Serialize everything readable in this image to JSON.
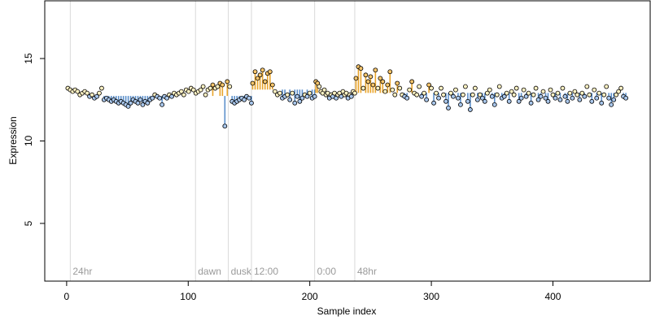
{
  "chart_data": {
    "type": "scatter",
    "title": "",
    "xlabel": "Sample index",
    "ylabel": "Expression",
    "xlim": [
      -18,
      480
    ],
    "ylim": [
      1.5,
      18.5
    ],
    "x_ticks": [
      0,
      100,
      200,
      300,
      400
    ],
    "y_ticks": [
      5,
      10,
      15
    ],
    "grid": false,
    "legend": "none",
    "colors": {
      "point_fill_default": "#fff3c4",
      "point_fill_low": "#a9c7ec",
      "point_fill_high": "#f7c56b",
      "point_edge": "#000000",
      "stem_low": "#5b8fcb",
      "stem_high": "#e9a42a",
      "event_line": "#d9d9d9",
      "event_text": "#9a9a9a"
    },
    "events": [
      {
        "label": "24hr",
        "x": 3
      },
      {
        "label": "dawn",
        "x": 106
      },
      {
        "label": "dusk",
        "x": 133
      },
      {
        "label": "12:00",
        "x": 152
      },
      {
        "label": "0:00",
        "x": 204
      },
      {
        "label": "48hr",
        "x": 237
      }
    ],
    "segments": [
      {
        "x_start": 1,
        "x_end": 152,
        "values": [
          13.2,
          13.1,
          13.0,
          13.1,
          13.0,
          12.8,
          12.9,
          13.0,
          12.9,
          12.7,
          12.8,
          12.6,
          12.7,
          12.9,
          13.2,
          12.5,
          12.6,
          12.5,
          12.4,
          12.5,
          12.4,
          12.3,
          12.4,
          12.3,
          12.2,
          12.1,
          12.3,
          12.5,
          12.4,
          12.3,
          12.5,
          12.2,
          12.4,
          12.3,
          12.5,
          12.6,
          12.8,
          12.7,
          12.6,
          12.2,
          12.7,
          12.6,
          12.8,
          12.7,
          12.9,
          12.8,
          12.9,
          13.0,
          12.8,
          13.1,
          13.0,
          13.2,
          13.1,
          12.9,
          13.0,
          13.1,
          13.3,
          12.8,
          13.1,
          13.2,
          13.4,
          13.2,
          13.3,
          13.5,
          13.4,
          10.9,
          13.6,
          13.3,
          12.4,
          12.3,
          12.4,
          12.5,
          12.6,
          12.5,
          12.7,
          12.6,
          12.3
        ]
      },
      {
        "x_start": 153,
        "x_end": 204,
        "values": [
          13.5,
          14.2,
          13.8,
          14.0,
          14.3,
          13.6,
          14.1,
          14.2,
          13.4,
          13.0,
          12.8,
          12.9,
          12.6,
          12.7,
          12.8,
          12.5,
          12.9,
          12.3,
          12.7,
          12.4,
          12.6,
          12.8,
          12.7,
          12.9,
          12.6,
          12.7
        ]
      },
      {
        "x_start": 205,
        "x_end": 237,
        "values": [
          13.6,
          13.5,
          13.3,
          13.0,
          12.9,
          13.1,
          12.8,
          12.9,
          12.6,
          12.8,
          12.7,
          12.9,
          12.6,
          12.8,
          12.9,
          12.7,
          13.0,
          12.8,
          12.9,
          12.6,
          12.8,
          12.7,
          13.0,
          12.9
        ]
      },
      {
        "x_start": 238,
        "x_end": 460,
        "values": [
          13.8,
          14.5,
          14.4,
          13.2,
          14.0,
          13.6,
          13.9,
          13.4,
          14.3,
          13.2,
          13.8,
          13.6,
          13.0,
          13.4,
          14.2,
          13.1,
          12.8,
          13.5,
          13.2,
          12.8,
          12.7,
          12.6,
          13.1,
          13.6,
          12.9,
          12.8,
          13.3,
          12.7,
          12.9,
          12.5,
          13.4,
          13.2,
          12.3,
          12.9,
          12.6,
          13.2,
          12.8,
          12.4,
          12.0,
          12.9,
          12.7,
          13.1,
          12.6,
          12.2,
          12.8,
          13.3,
          12.4,
          11.9,
          12.8,
          13.2,
          12.5,
          12.8,
          12.6,
          12.4,
          12.9,
          13.1,
          12.7,
          12.2,
          12.8,
          13.3,
          12.6,
          12.7,
          12.9,
          12.4,
          13.0,
          12.8,
          13.2,
          12.4,
          12.6,
          13.1,
          12.7,
          12.9,
          12.3,
          12.8,
          13.2,
          12.5,
          12.7,
          13.0,
          12.6,
          12.4,
          13.1,
          12.8,
          12.6,
          12.9,
          12.5,
          13.2,
          12.7,
          12.4,
          12.9,
          12.6,
          13.0,
          12.8,
          12.5,
          12.9,
          12.7,
          13.3,
          12.8,
          12.4,
          13.1,
          12.6,
          12.9,
          12.3,
          12.8,
          13.3,
          12.6,
          12.2,
          12.5,
          12.8,
          13.0,
          13.2,
          12.7,
          12.6
        ]
      }
    ],
    "low_threshold": 12.8,
    "high_threshold": 13.3
  }
}
